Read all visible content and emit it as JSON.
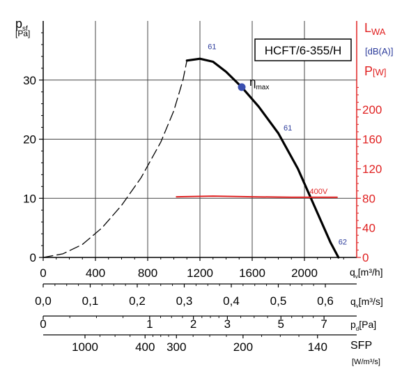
{
  "chart_data": {
    "type": "line",
    "model_label": "HCFT/6-355/H",
    "left_axis": {
      "label_main": "p",
      "label_sub": "sf",
      "unit": "[Pa]",
      "ticks": [
        0,
        10,
        20,
        30
      ],
      "ylim": [
        0,
        40
      ]
    },
    "right_axis": {
      "lwa_label_main": "L",
      "lwa_label_sub": "WA",
      "lwa_unit": "[dB(A)]",
      "power_label": "P",
      "power_unit": "[W]",
      "ticks": [
        0,
        40,
        80,
        120,
        160,
        200
      ],
      "ylim": [
        0,
        320
      ]
    },
    "x_axis": {
      "label_main": "q",
      "label_sub": "v",
      "unit": "[m³/h]",
      "ticks": [
        0,
        400,
        800,
        1200,
        1600,
        2000
      ],
      "xlim": [
        0,
        2400
      ]
    },
    "secondary_axes": [
      {
        "label_main": "q",
        "label_sub": "v",
        "unit": "[m³/s]",
        "ticks": [
          {
            "label": "0,0",
            "q_m3h": 0
          },
          {
            "label": "0,1",
            "q_m3h": 360
          },
          {
            "label": "0,2",
            "q_m3h": 720
          },
          {
            "label": "0,3",
            "q_m3h": 1080
          },
          {
            "label": "0,4",
            "q_m3h": 1440
          },
          {
            "label": "0,5",
            "q_m3h": 1800
          },
          {
            "label": "0,6",
            "q_m3h": 2160
          }
        ]
      },
      {
        "label_main": "p",
        "label_sub": "d",
        "unit": "[Pa]",
        "ticks": [
          {
            "label": "0",
            "q_m3h": 0
          },
          {
            "label": "1",
            "q_m3h": 815
          },
          {
            "label": "2",
            "q_m3h": 1150
          },
          {
            "label": "3",
            "q_m3h": 1410
          },
          {
            "label": "5",
            "q_m3h": 1820
          },
          {
            "label": "7",
            "q_m3h": 2150
          }
        ]
      },
      {
        "label_main": "SFP",
        "unit": "[W/m³/s]",
        "ticks": [
          {
            "label": "1000",
            "q_m3h": 320
          },
          {
            "label": "400",
            "q_m3h": 780
          },
          {
            "label": "300",
            "q_m3h": 1020
          },
          {
            "label": "200",
            "q_m3h": 1530
          },
          {
            "label": "140",
            "q_m3h": 2100
          }
        ]
      }
    ],
    "series": [
      {
        "axis": "left",
        "color": "#000000",
        "style": "dashed",
        "points": [
          [
            0,
            0
          ],
          [
            150,
            0.6
          ],
          [
            300,
            2.2
          ],
          [
            450,
            5.0
          ],
          [
            600,
            8.8
          ],
          [
            750,
            13.5
          ],
          [
            900,
            19.5
          ],
          [
            1000,
            24.8
          ],
          [
            1070,
            30.0
          ],
          [
            1100,
            33.3
          ]
        ]
      },
      {
        "axis": "left",
        "color": "#000000",
        "style": "solid",
        "points": [
          [
            1100,
            33.3
          ],
          [
            1200,
            33.6
          ],
          [
            1300,
            33.1
          ],
          [
            1400,
            31.4
          ],
          [
            1520,
            28.8
          ],
          [
            1650,
            25.5
          ],
          [
            1800,
            21.0
          ],
          [
            1950,
            15.0
          ],
          [
            2080,
            8.5
          ],
          [
            2200,
            2.5
          ],
          [
            2260,
            0
          ]
        ]
      },
      {
        "axis": "right",
        "color": "#e02020",
        "style": "solid",
        "points": [
          [
            1020,
            82
          ],
          [
            1300,
            83
          ],
          [
            1600,
            82
          ],
          [
            1900,
            81.5
          ],
          [
            2250,
            81.5
          ]
        ]
      }
    ],
    "annotations": [
      {
        "text": "61",
        "color": "#2a3a9a",
        "x": 1260,
        "y": 35.2,
        "axis": "left"
      },
      {
        "text": "61",
        "color": "#2a3a9a",
        "x": 1840,
        "y": 21.5,
        "axis": "left"
      },
      {
        "text": "62",
        "color": "#2a3a9a",
        "x": 2260,
        "y": 2.2,
        "axis": "left"
      },
      {
        "text": "400V",
        "color": "#e02020",
        "x": 2040,
        "y": 86,
        "axis": "right"
      }
    ],
    "eta_max": {
      "symbol": "η",
      "sub": "max",
      "x": 1520,
      "y": 28.8,
      "color": "#3a4fb0"
    },
    "colors": {
      "left": "#000000",
      "right_power": "#e02020",
      "lwa": "#2a3a9a"
    }
  }
}
